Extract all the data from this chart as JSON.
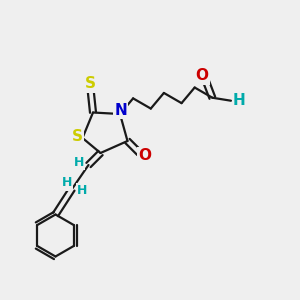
{
  "bg_color": "#efefef",
  "bond_color": "#1a1a1a",
  "bond_width": 1.6,
  "dbo": 0.012,
  "colors": {
    "S": "#cccc00",
    "N": "#0000cc",
    "O": "#cc0000",
    "H": "#00aaaa",
    "C": "#1a1a1a"
  }
}
